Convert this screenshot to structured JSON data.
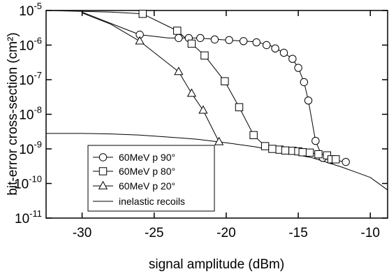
{
  "chart_data": {
    "type": "scatter",
    "xlabel": "signal amplitude (dBm)",
    "ylabel": "bit-error cross-section (cm²)",
    "x_ticks": [
      -30,
      -25,
      -20,
      -15,
      -10
    ],
    "x_tick_labels": [
      "-30",
      "-25",
      "-20",
      "-15",
      "-10"
    ],
    "y_tick_labels": [
      {
        "base": "10",
        "exp": "-5"
      },
      {
        "base": "10",
        "exp": "-6"
      },
      {
        "base": "10",
        "exp": "-7"
      },
      {
        "base": "10",
        "exp": "-8"
      },
      {
        "base": "10",
        "exp": "-9"
      },
      {
        "base": "10",
        "exp": "-10"
      },
      {
        "base": "10",
        "exp": "-11"
      }
    ],
    "xlim": [
      -32.5,
      -8.8
    ],
    "ylim": [
      1e-11,
      1e-05
    ],
    "y_scale": "log",
    "legend_position": "bottom-left",
    "series": [
      {
        "name": "60MeV p 90°",
        "marker": "circle",
        "points": [
          [
            -26.0,
            2e-06
          ],
          [
            -23.3,
            1.6e-06
          ],
          [
            -22.6,
            1.6e-06
          ],
          [
            -21.8,
            1.6e-06
          ],
          [
            -20.8,
            1.45e-06
          ],
          [
            -19.8,
            1.4e-06
          ],
          [
            -18.8,
            1.3e-06
          ],
          [
            -17.9,
            1.2e-06
          ],
          [
            -17.2,
            1e-06
          ],
          [
            -16.6,
            8e-07
          ],
          [
            -16.0,
            6e-07
          ],
          [
            -15.4,
            4e-07
          ],
          [
            -15.0,
            2.2e-07
          ],
          [
            -14.6,
            8.5e-08
          ],
          [
            -14.3,
            2.5e-08
          ],
          [
            -13.8,
            1.7e-09
          ],
          [
            -13.3,
            5.5e-10
          ],
          [
            -12.7,
            4.8e-10
          ],
          [
            -11.7,
            4.2e-10
          ]
        ],
        "curve": [
          [
            -30.0,
            9e-06
          ],
          [
            -27.5,
            3.5e-06
          ],
          [
            -26.0,
            2e-06
          ],
          [
            -24.0,
            1.6e-06
          ],
          [
            -22.0,
            1.6e-06
          ],
          [
            -20.0,
            1.4e-06
          ],
          [
            -18.0,
            1.25e-06
          ],
          [
            -17.0,
            1e-06
          ],
          [
            -16.0,
            6e-07
          ],
          [
            -15.4,
            4e-07
          ],
          [
            -15.0,
            2.2e-07
          ],
          [
            -14.6,
            8.5e-08
          ],
          [
            -14.3,
            2.5e-08
          ],
          [
            -13.8,
            1.7e-09
          ],
          [
            -13.3,
            5.5e-10
          ],
          [
            -12.7,
            4.8e-10
          ],
          [
            -11.7,
            4.2e-10
          ]
        ]
      },
      {
        "name": "60MeV p 80°",
        "marker": "square",
        "points": [
          [
            -25.8,
            8e-06
          ],
          [
            -23.4,
            2.6e-06
          ],
          [
            -22.4,
            1.1e-06
          ],
          [
            -21.5,
            5e-07
          ],
          [
            -20.1,
            9e-08
          ],
          [
            -19.1,
            1.6e-08
          ],
          [
            -18.1,
            2.5e-09
          ],
          [
            -17.3,
            1.2e-09
          ],
          [
            -16.8,
            1e-09
          ],
          [
            -16.3,
            9.5e-10
          ],
          [
            -15.9,
            9e-10
          ],
          [
            -15.4,
            8.8e-10
          ],
          [
            -15.0,
            8.5e-10
          ],
          [
            -14.7,
            8e-10
          ],
          [
            -14.2,
            7.8e-10
          ],
          [
            -13.6,
            7e-10
          ],
          [
            -13.0,
            6.5e-10
          ],
          [
            -12.7,
            5e-10
          ],
          [
            -12.4,
            5e-10
          ]
        ],
        "curve": [
          [
            -32.5,
            1e-05
          ],
          [
            -28.0,
            9e-06
          ],
          [
            -25.8,
            8e-06
          ],
          [
            -23.4,
            2.6e-06
          ],
          [
            -22.4,
            1.1e-06
          ],
          [
            -21.5,
            5e-07
          ],
          [
            -20.1,
            9e-08
          ],
          [
            -19.1,
            1.6e-08
          ],
          [
            -18.1,
            2.5e-09
          ],
          [
            -17.3,
            1.2e-09
          ],
          [
            -16.3,
            9.5e-10
          ],
          [
            -15.0,
            8.5e-10
          ],
          [
            -14.2,
            7.8e-10
          ],
          [
            -13.6,
            7e-10
          ],
          [
            -13.0,
            6.5e-10
          ],
          [
            -12.4,
            5e-10
          ]
        ]
      },
      {
        "name": "60MeV p 20°",
        "marker": "triangle",
        "points": [
          [
            -26.0,
            1.3e-06
          ],
          [
            -23.3,
            1.7e-07
          ],
          [
            -22.4,
            4e-08
          ],
          [
            -21.6,
            1.3e-08
          ],
          [
            -20.5,
            1.6e-09
          ]
        ],
        "curve": [
          [
            -30.0,
            8.5e-06
          ],
          [
            -28.0,
            4e-06
          ],
          [
            -26.0,
            1.3e-06
          ],
          [
            -23.3,
            1.7e-07
          ],
          [
            -22.4,
            4e-08
          ],
          [
            -21.6,
            1.3e-08
          ],
          [
            -20.5,
            1.6e-09
          ]
        ]
      },
      {
        "name": "inelastic recoils",
        "marker": "none",
        "curve": [
          [
            -32.5,
            2.8e-09
          ],
          [
            -30.0,
            2.8e-09
          ],
          [
            -28.0,
            2.7e-09
          ],
          [
            -26.0,
            2.5e-09
          ],
          [
            -24.0,
            2.2e-09
          ],
          [
            -22.0,
            1.9e-09
          ],
          [
            -20.0,
            1.5e-09
          ],
          [
            -18.0,
            1.15e-09
          ],
          [
            -16.0,
            8e-10
          ],
          [
            -14.0,
            5.5e-10
          ],
          [
            -12.0,
            3e-10
          ],
          [
            -10.0,
            1.5e-10
          ],
          [
            -8.8,
            6.5e-11
          ]
        ]
      }
    ]
  }
}
